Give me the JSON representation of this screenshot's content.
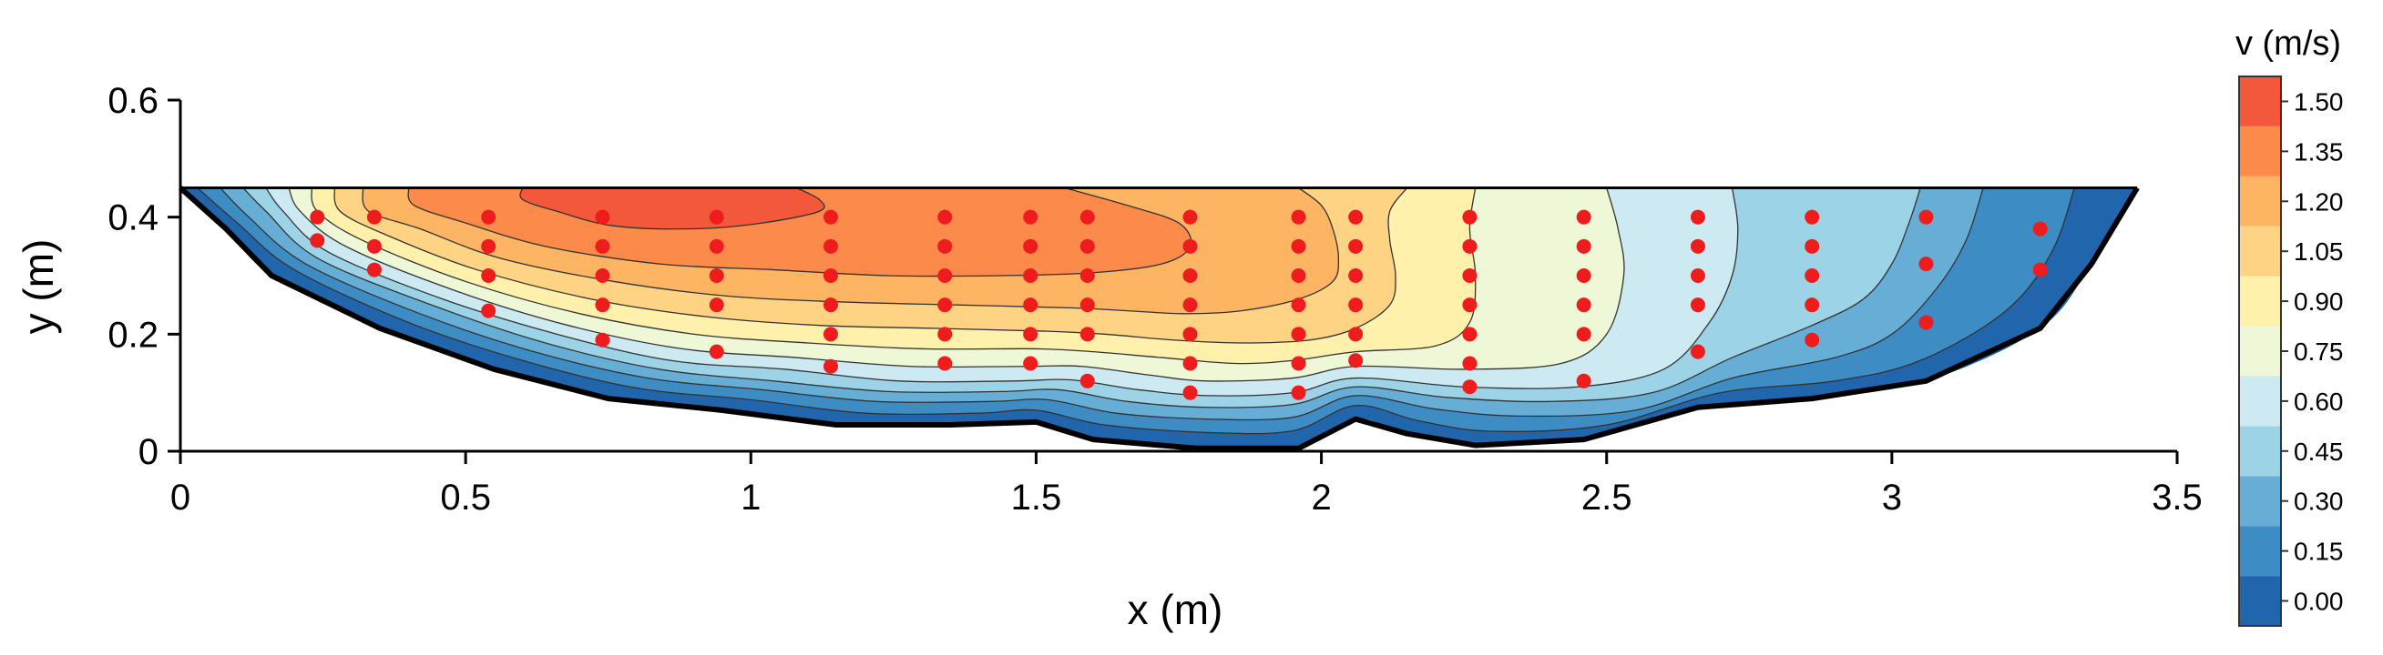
{
  "chart_data": {
    "type": "contour",
    "xlabel": "x (m)",
    "ylabel": "y (m)",
    "xlim": [
      0,
      3.5
    ],
    "ylim": [
      0,
      0.6
    ],
    "xticks": [
      0,
      0.5,
      1,
      1.5,
      2,
      2.5,
      3,
      3.5
    ],
    "xtick_labels": [
      "0",
      "0.5",
      "1",
      "1.5",
      "2",
      "2.5",
      "3",
      "3.5"
    ],
    "yticks": [
      0,
      0.2,
      0.4,
      0.6
    ],
    "ytick_labels": [
      "0",
      "0.2",
      "0.4",
      "0.6"
    ],
    "water_surface_y": 0.45,
    "bed_profile": [
      [
        0,
        0.45
      ],
      [
        0.08,
        0.38
      ],
      [
        0.16,
        0.3
      ],
      [
        0.35,
        0.21
      ],
      [
        0.55,
        0.14
      ],
      [
        0.75,
        0.09
      ],
      [
        0.95,
        0.07
      ],
      [
        1.15,
        0.045
      ],
      [
        1.35,
        0.045
      ],
      [
        1.5,
        0.05
      ],
      [
        1.6,
        0.02
      ],
      [
        1.78,
        0.005
      ],
      [
        1.96,
        0.005
      ],
      [
        2.06,
        0.055
      ],
      [
        2.15,
        0.03
      ],
      [
        2.27,
        0.01
      ],
      [
        2.46,
        0.02
      ],
      [
        2.66,
        0.075
      ],
      [
        2.86,
        0.09
      ],
      [
        3.06,
        0.12
      ],
      [
        3.26,
        0.21
      ],
      [
        3.35,
        0.32
      ],
      [
        3.43,
        0.45
      ]
    ],
    "velocity_colorbar": {
      "title": "v (m/s)",
      "levels": [
        0.0,
        0.15,
        0.3,
        0.45,
        0.6,
        0.75,
        0.9,
        1.05,
        1.2,
        1.35,
        1.5
      ],
      "labels": [
        "0.00",
        "0.15",
        "0.30",
        "0.45",
        "0.60",
        "0.75",
        "0.90",
        "1.05",
        "1.20",
        "1.35",
        "1.50"
      ],
      "colors": [
        "#2166ac",
        "#3d8cc4",
        "#67aed6",
        "#9cd3e6",
        "#cde9f1",
        "#eef7d6",
        "#fff0ab",
        "#fed384",
        "#fdb563",
        "#fb8a4b",
        "#f4583a"
      ]
    },
    "isotach_bands": [
      {
        "min": 0.0,
        "max": 0.15,
        "color": "#2166ac",
        "polygon": [
          [
            0,
            0.45
          ],
          [
            0.08,
            0.38
          ],
          [
            0.16,
            0.3
          ],
          [
            0.35,
            0.21
          ],
          [
            0.55,
            0.14
          ],
          [
            0.75,
            0.09
          ],
          [
            0.95,
            0.07
          ],
          [
            1.15,
            0.045
          ],
          [
            1.35,
            0.045
          ],
          [
            1.5,
            0.05
          ],
          [
            1.6,
            0.02
          ],
          [
            1.78,
            0.005
          ],
          [
            1.96,
            0.005
          ],
          [
            2.06,
            0.055
          ],
          [
            2.15,
            0.03
          ],
          [
            2.27,
            0.01
          ],
          [
            2.46,
            0.02
          ],
          [
            2.66,
            0.075
          ],
          [
            2.86,
            0.09
          ],
          [
            3.06,
            0.12
          ],
          [
            3.26,
            0.21
          ],
          [
            3.35,
            0.32
          ],
          [
            3.43,
            0.45
          ]
        ]
      },
      {
        "min": 0.15,
        "max": 0.3,
        "color": "#3d8cc4",
        "polygon": [
          [
            0.03,
            0.45
          ],
          [
            0.1,
            0.39
          ],
          [
            0.2,
            0.31
          ],
          [
            0.4,
            0.22
          ],
          [
            0.6,
            0.155
          ],
          [
            0.8,
            0.108
          ],
          [
            1.0,
            0.088
          ],
          [
            1.2,
            0.065
          ],
          [
            1.4,
            0.065
          ],
          [
            1.5,
            0.07
          ],
          [
            1.62,
            0.045
          ],
          [
            1.8,
            0.032
          ],
          [
            1.95,
            0.035
          ],
          [
            2.06,
            0.078
          ],
          [
            2.17,
            0.052
          ],
          [
            2.3,
            0.034
          ],
          [
            2.5,
            0.045
          ],
          [
            2.7,
            0.1
          ],
          [
            2.9,
            0.12
          ],
          [
            3.05,
            0.155
          ],
          [
            3.2,
            0.24
          ],
          [
            3.28,
            0.34
          ],
          [
            3.32,
            0.45
          ]
        ]
      },
      {
        "min": 0.3,
        "max": 0.45,
        "color": "#67aed6",
        "polygon": [
          [
            0.07,
            0.45
          ],
          [
            0.12,
            0.4
          ],
          [
            0.22,
            0.32
          ],
          [
            0.42,
            0.235
          ],
          [
            0.62,
            0.17
          ],
          [
            0.82,
            0.125
          ],
          [
            1.02,
            0.105
          ],
          [
            1.22,
            0.085
          ],
          [
            1.42,
            0.085
          ],
          [
            1.52,
            0.088
          ],
          [
            1.64,
            0.065
          ],
          [
            1.8,
            0.055
          ],
          [
            1.95,
            0.058
          ],
          [
            2.06,
            0.095
          ],
          [
            2.2,
            0.072
          ],
          [
            2.35,
            0.06
          ],
          [
            2.55,
            0.07
          ],
          [
            2.72,
            0.125
          ],
          [
            2.9,
            0.16
          ],
          [
            3.0,
            0.2
          ],
          [
            3.08,
            0.28
          ],
          [
            3.13,
            0.36
          ],
          [
            3.16,
            0.45
          ]
        ]
      },
      {
        "min": 0.45,
        "max": 0.6,
        "color": "#9cd3e6",
        "polygon": [
          [
            0.11,
            0.45
          ],
          [
            0.15,
            0.41
          ],
          [
            0.24,
            0.33
          ],
          [
            0.44,
            0.25
          ],
          [
            0.64,
            0.185
          ],
          [
            0.84,
            0.14
          ],
          [
            1.04,
            0.12
          ],
          [
            1.24,
            0.102
          ],
          [
            1.44,
            0.102
          ],
          [
            1.54,
            0.105
          ],
          [
            1.66,
            0.085
          ],
          [
            1.8,
            0.075
          ],
          [
            1.95,
            0.08
          ],
          [
            2.06,
            0.11
          ],
          [
            2.22,
            0.092
          ],
          [
            2.4,
            0.085
          ],
          [
            2.58,
            0.1
          ],
          [
            2.72,
            0.16
          ],
          [
            2.86,
            0.215
          ],
          [
            2.95,
            0.26
          ],
          [
            3.0,
            0.32
          ],
          [
            3.03,
            0.39
          ],
          [
            3.05,
            0.45
          ]
        ]
      },
      {
        "min": 0.6,
        "max": 0.75,
        "color": "#cde9f1",
        "polygon": [
          [
            0.15,
            0.45
          ],
          [
            0.18,
            0.41
          ],
          [
            0.26,
            0.34
          ],
          [
            0.46,
            0.26
          ],
          [
            0.66,
            0.2
          ],
          [
            0.86,
            0.155
          ],
          [
            1.06,
            0.14
          ],
          [
            1.26,
            0.12
          ],
          [
            1.46,
            0.12
          ],
          [
            1.56,
            0.122
          ],
          [
            1.68,
            0.105
          ],
          [
            1.8,
            0.095
          ],
          [
            1.95,
            0.1
          ],
          [
            2.06,
            0.125
          ],
          [
            2.25,
            0.11
          ],
          [
            2.45,
            0.11
          ],
          [
            2.6,
            0.14
          ],
          [
            2.68,
            0.22
          ],
          [
            2.72,
            0.3
          ],
          [
            2.73,
            0.38
          ],
          [
            2.72,
            0.45
          ]
        ]
      },
      {
        "min": 0.75,
        "max": 0.9,
        "color": "#eef7d6",
        "polygon": [
          [
            0.19,
            0.45
          ],
          [
            0.21,
            0.41
          ],
          [
            0.29,
            0.35
          ],
          [
            0.48,
            0.275
          ],
          [
            0.68,
            0.215
          ],
          [
            0.88,
            0.175
          ],
          [
            1.08,
            0.16
          ],
          [
            1.28,
            0.145
          ],
          [
            1.48,
            0.145
          ],
          [
            1.58,
            0.145
          ],
          [
            1.7,
            0.13
          ],
          [
            1.8,
            0.12
          ],
          [
            1.95,
            0.125
          ],
          [
            2.06,
            0.145
          ],
          [
            2.25,
            0.14
          ],
          [
            2.42,
            0.15
          ],
          [
            2.5,
            0.2
          ],
          [
            2.53,
            0.3
          ],
          [
            2.52,
            0.38
          ],
          [
            2.5,
            0.45
          ]
        ]
      },
      {
        "min": 0.9,
        "max": 1.05,
        "color": "#fff0ab",
        "polygon": [
          [
            0.23,
            0.45
          ],
          [
            0.24,
            0.41
          ],
          [
            0.32,
            0.36
          ],
          [
            0.5,
            0.29
          ],
          [
            0.7,
            0.235
          ],
          [
            0.9,
            0.2
          ],
          [
            1.1,
            0.185
          ],
          [
            1.3,
            0.175
          ],
          [
            1.5,
            0.175
          ],
          [
            1.6,
            0.17
          ],
          [
            1.72,
            0.16
          ],
          [
            1.85,
            0.15
          ],
          [
            1.95,
            0.155
          ],
          [
            2.06,
            0.17
          ],
          [
            2.2,
            0.18
          ],
          [
            2.26,
            0.22
          ],
          [
            2.27,
            0.3
          ],
          [
            2.26,
            0.38
          ],
          [
            2.27,
            0.45
          ]
        ]
      },
      {
        "min": 1.05,
        "max": 1.2,
        "color": "#fed384",
        "polygon": [
          [
            0.27,
            0.45
          ],
          [
            0.28,
            0.41
          ],
          [
            0.36,
            0.37
          ],
          [
            0.52,
            0.31
          ],
          [
            0.72,
            0.26
          ],
          [
            0.92,
            0.23
          ],
          [
            1.12,
            0.215
          ],
          [
            1.32,
            0.21
          ],
          [
            1.52,
            0.205
          ],
          [
            1.62,
            0.2
          ],
          [
            1.74,
            0.19
          ],
          [
            1.86,
            0.185
          ],
          [
            1.98,
            0.19
          ],
          [
            2.06,
            0.21
          ],
          [
            2.12,
            0.25
          ],
          [
            2.13,
            0.3
          ],
          [
            2.12,
            0.36
          ],
          [
            2.12,
            0.41
          ],
          [
            2.15,
            0.45
          ]
        ]
      },
      {
        "min": 1.2,
        "max": 1.35,
        "color": "#fdb563",
        "polygon": [
          [
            0.32,
            0.45
          ],
          [
            0.33,
            0.41
          ],
          [
            0.42,
            0.38
          ],
          [
            0.56,
            0.33
          ],
          [
            0.76,
            0.29
          ],
          [
            0.96,
            0.265
          ],
          [
            1.16,
            0.255
          ],
          [
            1.36,
            0.25
          ],
          [
            1.56,
            0.245
          ],
          [
            1.66,
            0.24
          ],
          [
            1.76,
            0.235
          ],
          [
            1.86,
            0.24
          ],
          [
            1.96,
            0.26
          ],
          [
            2.02,
            0.29
          ],
          [
            2.03,
            0.33
          ],
          [
            2.02,
            0.38
          ],
          [
            2.0,
            0.42
          ],
          [
            1.96,
            0.45
          ]
        ]
      },
      {
        "min": 1.35,
        "max": 1.5,
        "color": "#fb8a4b",
        "polygon": [
          [
            0.4,
            0.45
          ],
          [
            0.41,
            0.42
          ],
          [
            0.5,
            0.39
          ],
          [
            0.64,
            0.35
          ],
          [
            0.84,
            0.32
          ],
          [
            1.04,
            0.31
          ],
          [
            1.24,
            0.3
          ],
          [
            1.44,
            0.3
          ],
          [
            1.6,
            0.305
          ],
          [
            1.72,
            0.32
          ],
          [
            1.77,
            0.35
          ],
          [
            1.75,
            0.39
          ],
          [
            1.66,
            0.42
          ],
          [
            1.55,
            0.45
          ]
        ]
      },
      {
        "min": 1.5,
        "max": 1.65,
        "color": "#f4583a",
        "polygon": [
          [
            0.6,
            0.45
          ],
          [
            0.6,
            0.43
          ],
          [
            0.66,
            0.41
          ],
          [
            0.76,
            0.385
          ],
          [
            0.9,
            0.38
          ],
          [
            1.02,
            0.39
          ],
          [
            1.12,
            0.41
          ],
          [
            1.12,
            0.43
          ],
          [
            1.08,
            0.45
          ]
        ]
      }
    ],
    "measurement_points": [
      {
        "x": 0.24,
        "y": [
          0.4,
          0.36
        ]
      },
      {
        "x": 0.34,
        "y": [
          0.4,
          0.35,
          0.31
        ]
      },
      {
        "x": 0.54,
        "y": [
          0.4,
          0.35,
          0.3,
          0.24
        ]
      },
      {
        "x": 0.74,
        "y": [
          0.4,
          0.35,
          0.3,
          0.25,
          0.19
        ]
      },
      {
        "x": 0.94,
        "y": [
          0.4,
          0.35,
          0.3,
          0.25,
          0.17
        ]
      },
      {
        "x": 1.14,
        "y": [
          0.4,
          0.35,
          0.3,
          0.25,
          0.2,
          0.145
        ]
      },
      {
        "x": 1.34,
        "y": [
          0.4,
          0.35,
          0.3,
          0.25,
          0.2,
          0.15
        ]
      },
      {
        "x": 1.49,
        "y": [
          0.4,
          0.35,
          0.3,
          0.25,
          0.2,
          0.15
        ]
      },
      {
        "x": 1.59,
        "y": [
          0.4,
          0.35,
          0.3,
          0.25,
          0.2,
          0.12
        ]
      },
      {
        "x": 1.77,
        "y": [
          0.4,
          0.35,
          0.3,
          0.25,
          0.2,
          0.15,
          0.1
        ]
      },
      {
        "x": 1.96,
        "y": [
          0.4,
          0.35,
          0.3,
          0.25,
          0.2,
          0.15,
          0.1
        ]
      },
      {
        "x": 2.06,
        "y": [
          0.4,
          0.35,
          0.3,
          0.25,
          0.2,
          0.155
        ]
      },
      {
        "x": 2.26,
        "y": [
          0.4,
          0.35,
          0.3,
          0.25,
          0.2,
          0.15,
          0.11
        ]
      },
      {
        "x": 2.46,
        "y": [
          0.4,
          0.35,
          0.3,
          0.25,
          0.2,
          0.12
        ]
      },
      {
        "x": 2.66,
        "y": [
          0.4,
          0.35,
          0.3,
          0.25,
          0.17
        ]
      },
      {
        "x": 2.86,
        "y": [
          0.4,
          0.35,
          0.3,
          0.25,
          0.19
        ]
      },
      {
        "x": 3.06,
        "y": [
          0.4,
          0.32,
          0.22
        ]
      },
      {
        "x": 3.26,
        "y": [
          0.38,
          0.31
        ]
      }
    ],
    "marker_color": "#ee1c1c",
    "grid": false
  }
}
